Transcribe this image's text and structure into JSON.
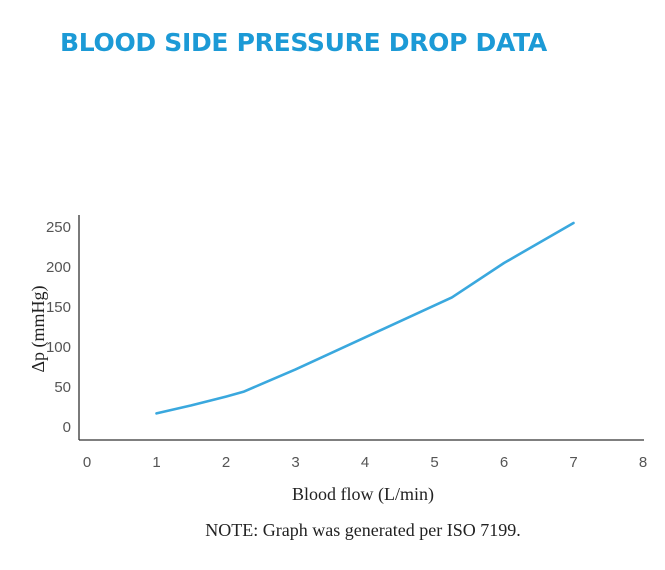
{
  "page_title": "BLOOD SIDE PRESSURE DROP DATA",
  "note": "NOTE: Graph was generated per ISO 7199.",
  "chart_data": {
    "type": "line",
    "title": "BLOOD SIDE PRESSURE DROP DATA",
    "xlabel": "Blood flow (L/min)",
    "ylabel": "Δp (mmHg)",
    "xlim": [
      0,
      8
    ],
    "ylim": [
      0,
      250
    ],
    "x_ticks": [
      "0",
      "1",
      "2",
      "3",
      "4",
      "5",
      "6",
      "7",
      "8"
    ],
    "y_ticks": [
      "0",
      "50",
      "100",
      "150",
      "200",
      "250"
    ],
    "grid": false,
    "series": [
      {
        "color": "#3aa8de",
        "x": [
          1,
          1.5,
          2,
          2.25,
          3,
          4,
          5,
          5.25,
          6,
          7
        ],
        "y": [
          17,
          27,
          38,
          44,
          72,
          112,
          152,
          162,
          205,
          255
        ]
      }
    ]
  }
}
